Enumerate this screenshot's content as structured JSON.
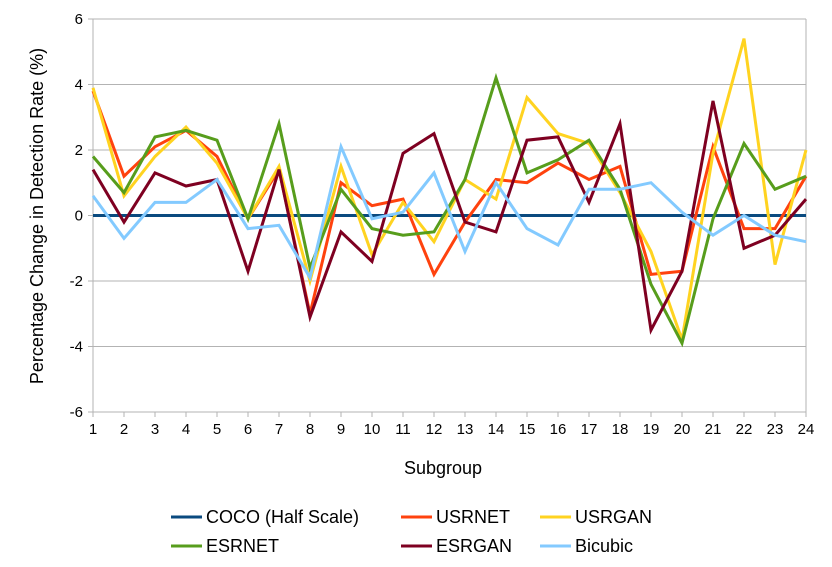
{
  "chart_data": {
    "type": "line",
    "xlabel": "Subgroup",
    "ylabel": "Percentage Change in Detection Rate (%)",
    "ylim": [
      -6,
      6
    ],
    "yticks": [
      -6,
      -4,
      -2,
      0,
      2,
      4,
      6
    ],
    "x": [
      1,
      2,
      3,
      4,
      5,
      6,
      7,
      8,
      9,
      10,
      11,
      12,
      13,
      14,
      15,
      16,
      17,
      18,
      19,
      20,
      21,
      22,
      23,
      24
    ],
    "grid": "horizontal",
    "legend_position": "bottom",
    "series": [
      {
        "name": "COCO (Half Scale)",
        "color": "#0a4a7f",
        "values": [
          0,
          0,
          0,
          0,
          0,
          0,
          0,
          0,
          0,
          0,
          0,
          0,
          0,
          0,
          0,
          0,
          0,
          0,
          0,
          0,
          0,
          0,
          0,
          0
        ]
      },
      {
        "name": "USRNET",
        "color": "#ff420e",
        "values": [
          3.8,
          1.2,
          2.1,
          2.6,
          1.8,
          -0.1,
          1.4,
          -3.0,
          1.0,
          0.3,
          0.5,
          -1.8,
          -0.2,
          1.1,
          1.0,
          1.6,
          1.1,
          1.5,
          -1.8,
          -1.7,
          2.1,
          -0.4,
          -0.4,
          1.2
        ]
      },
      {
        "name": "USRGAN",
        "color": "#ffd320",
        "values": [
          3.9,
          0.6,
          1.8,
          2.7,
          1.6,
          -0.1,
          1.5,
          -2.0,
          1.5,
          -1.2,
          0.4,
          -0.8,
          1.1,
          0.5,
          3.6,
          2.5,
          2.2,
          0.7,
          -1.1,
          -3.8,
          1.9,
          5.4,
          -1.5,
          2.0
        ]
      },
      {
        "name": "ESRNET",
        "color": "#579d1c",
        "values": [
          1.8,
          0.7,
          2.4,
          2.6,
          2.3,
          -0.1,
          2.8,
          -1.6,
          0.8,
          -0.4,
          -0.6,
          -0.5,
          1.1,
          4.2,
          1.3,
          1.7,
          2.3,
          0.8,
          -2.1,
          -3.9,
          -0.1,
          2.2,
          0.8,
          1.2
        ]
      },
      {
        "name": "ESRGAN",
        "color": "#7e0021",
        "values": [
          1.4,
          -0.2,
          1.3,
          0.9,
          1.1,
          -1.7,
          1.4,
          -3.1,
          -0.5,
          -1.4,
          1.9,
          2.5,
          -0.2,
          -0.5,
          2.3,
          2.4,
          0.4,
          2.8,
          -3.5,
          -1.7,
          3.5,
          -1.0,
          -0.6,
          0.5
        ]
      },
      {
        "name": "Bicubic",
        "color": "#83caff",
        "values": [
          0.6,
          -0.7,
          0.4,
          0.4,
          1.1,
          -0.4,
          -0.3,
          -1.9,
          2.1,
          -0.1,
          0.1,
          1.3,
          -1.1,
          1.0,
          -0.4,
          -0.9,
          0.8,
          0.8,
          1.0,
          0.1,
          -0.6,
          0.0,
          -0.6,
          -0.8
        ]
      }
    ]
  }
}
